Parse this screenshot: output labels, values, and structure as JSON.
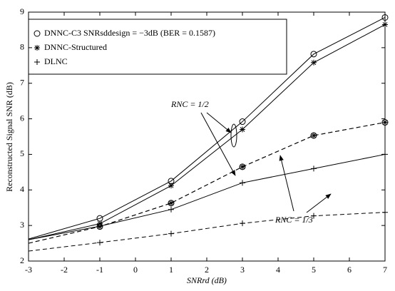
{
  "chart_data": {
    "type": "line",
    "xlabel": "SNRrd (dB)",
    "ylabel": "Reconstructed Signal SNR (dB)",
    "x": [
      -3,
      -1,
      1,
      3,
      5,
      7
    ],
    "xlim": [
      -3,
      7
    ],
    "xticks": [
      -3,
      -2,
      -1,
      0,
      1,
      2,
      3,
      4,
      5,
      6,
      7
    ],
    "ylim": [
      2,
      9
    ],
    "yticks": [
      2,
      3,
      4,
      5,
      6,
      7,
      8,
      9
    ],
    "legend": "upper left",
    "series": [
      {
        "name": "DNNC-C3 SNRsddesign = −3dB (BER = 0.1587)",
        "marker": "o",
        "dash": false,
        "color": "#000000",
        "values": [
          2.62,
          3.2,
          4.25,
          5.92,
          7.82,
          8.85
        ]
      },
      {
        "name": "DNNC-Structured",
        "marker": "*",
        "dash": false,
        "color": "#000000",
        "values": [
          2.6,
          3.05,
          4.12,
          5.7,
          7.58,
          8.65
        ]
      },
      {
        "name": "DLNC",
        "marker": "+",
        "dash": false,
        "color": "#000000",
        "values": [
          2.6,
          2.98,
          3.45,
          4.2,
          4.6,
          5.0
        ]
      },
      {
        "marker": "o",
        "dash": true,
        "color": "#000000",
        "values": [
          2.5,
          2.97,
          3.63,
          4.65,
          5.53,
          5.9
        ]
      },
      {
        "marker": "*",
        "dash": true,
        "color": "#000000",
        "values": [
          2.5,
          2.97,
          3.63,
          4.65,
          5.53,
          5.9
        ]
      },
      {
        "marker": "+",
        "dash": true,
        "color": "#000000",
        "values": [
          2.28,
          2.52,
          2.77,
          3.06,
          3.27,
          3.37
        ]
      }
    ],
    "annotations": [
      "RNC = 1/2",
      "RNC = 1/3"
    ]
  }
}
